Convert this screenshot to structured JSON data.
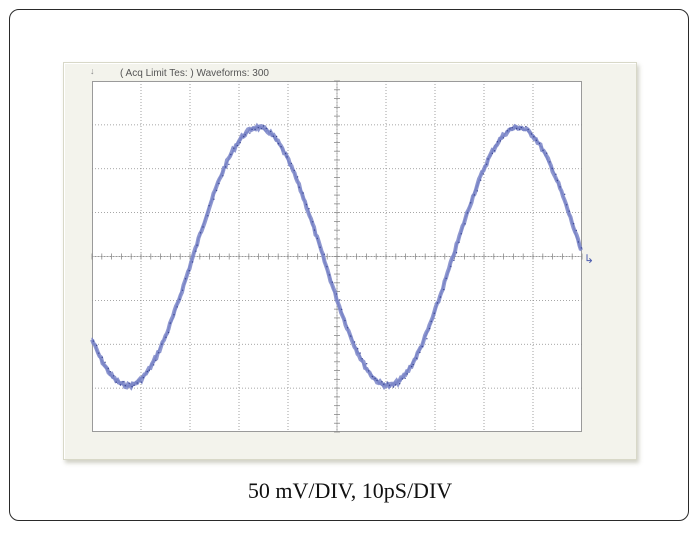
{
  "figure": {
    "header_marker": "↓",
    "header_text": "( Acq Limit Tes: )  Waveforms: 300",
    "trigger_marker": "↳",
    "caption": "50 mV/DIV, 10pS/DIV"
  },
  "scope": {
    "trace_color": "#7b86c8",
    "grid_color": "#8a8a8a",
    "divisions_x": 10,
    "divisions_y": 8
  }
}
